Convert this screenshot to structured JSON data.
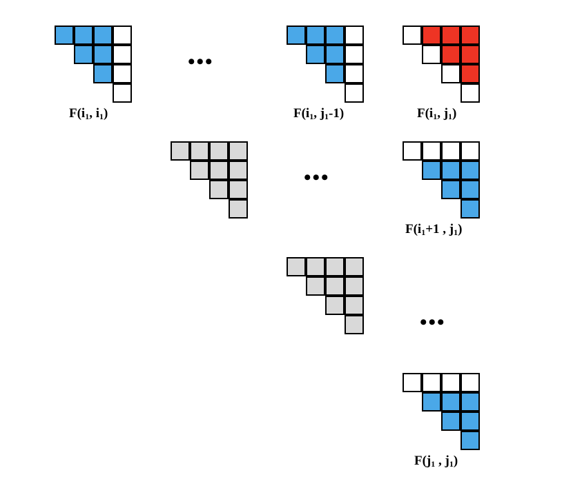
{
  "colors": {
    "blue": "#4aa8e8",
    "red": "#ee3424",
    "gray": "#d9d9d9",
    "white": "#ffffff",
    "border": "#000000"
  },
  "matrices": [
    {
      "id": "F(i1,i1)",
      "pattern": [
        "BBBW",
        "BBW",
        "BW",
        "W"
      ]
    },
    {
      "id": "F(i1,j1-1)",
      "pattern": [
        "BBBW",
        "BBW",
        "BW",
        "W"
      ]
    },
    {
      "id": "F(i1,j1)",
      "pattern": [
        "WRRR",
        "WRR",
        "WR",
        "W"
      ]
    },
    {
      "id": "gray-1",
      "pattern": [
        "GGGG",
        "GGG",
        "GG",
        "G"
      ]
    },
    {
      "id": "F(i1+1,j1)",
      "pattern": [
        "WWWW",
        "BBB",
        "BB",
        "B"
      ]
    },
    {
      "id": "gray-2",
      "pattern": [
        "GGGG",
        "GGG",
        "GG",
        "G"
      ]
    },
    {
      "id": "F(j1,j1)",
      "pattern": [
        "WWWW",
        "BBB",
        "BB",
        "B"
      ]
    }
  ],
  "labels": {
    "l1": {
      "main": "F(i",
      "sub1": "1",
      "mid": ", i",
      "sub2": "1",
      "end": ")"
    },
    "l2": {
      "main": "F(i",
      "sub1": "1",
      "mid": ", j",
      "sub2": "1",
      "end": "-1)"
    },
    "l3": {
      "main": "F(i",
      "sub1": "1",
      "mid": ", j",
      "sub2": "1",
      "end": ")"
    },
    "l4": {
      "main": "F(i",
      "sub1": "1",
      "mid": "+1 , j",
      "sub2": "1",
      "end": ")"
    },
    "l5": {
      "main": "F(j",
      "sub1": "1",
      "mid": " , j",
      "sub2": "1",
      "end": ")"
    }
  },
  "ellipsis": "•••"
}
